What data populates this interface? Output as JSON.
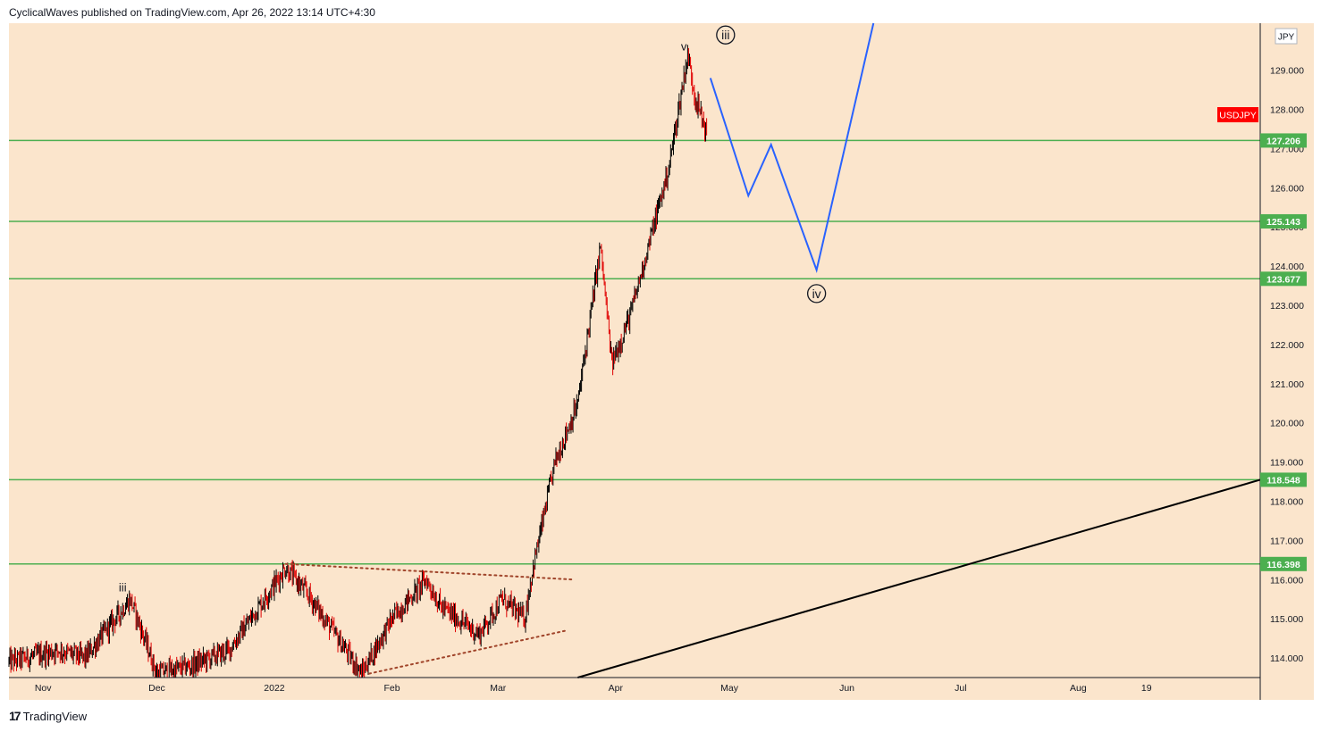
{
  "header": {
    "text": "CyclicalWaves published on TradingView.com, Apr 26, 2022 13:14 UTC+4:30"
  },
  "footer": {
    "logo_mark": "17",
    "logo_text": "TradingView"
  },
  "colors": {
    "background": "#fbe5cc",
    "level_line": "#4caf50",
    "projection": "#2962ff",
    "candle_up": "#000000",
    "candle_down": "#e00000",
    "trendline": "#000000",
    "dotted": "#a0442a",
    "symbol_badge": "#ff0000"
  },
  "chart_data": {
    "type": "candlestick",
    "symbol": "USDJPY",
    "currency": "JPY",
    "y_axis": {
      "ticks": [
        "129.000",
        "128.000",
        "127.000",
        "126.000",
        "125.000",
        "124.000",
        "123.000",
        "122.000",
        "121.000",
        "120.000",
        "119.000",
        "118.000",
        "117.000",
        "116.000",
        "115.000",
        "114.000"
      ],
      "tick_values": [
        129,
        128,
        127,
        126,
        125,
        124,
        123,
        122,
        121,
        120,
        119,
        118,
        117,
        116,
        115,
        114
      ],
      "range": [
        113.5,
        130.2
      ]
    },
    "x_axis": {
      "ticks": [
        "Nov",
        "Dec",
        "2022",
        "Feb",
        "Mar",
        "Apr",
        "May",
        "Jun",
        "Jul",
        "Aug",
        "19"
      ],
      "tick_dates": [
        "2021-11-01",
        "2021-12-01",
        "2022-01-01",
        "2022-02-01",
        "2022-03-01",
        "2022-04-01",
        "2022-05-01",
        "2022-06-01",
        "2022-07-01",
        "2022-08-01",
        "2022-08-19"
      ],
      "range": [
        "2021-10-23",
        "2022-09-18"
      ]
    },
    "price_path": [
      [
        "2021-10-23",
        113.9
      ],
      [
        "2021-11-05",
        114.2
      ],
      [
        "2021-11-12",
        114.0
      ],
      [
        "2021-11-24",
        115.5
      ],
      [
        "2021-12-01",
        113.6
      ],
      [
        "2021-12-10",
        113.8
      ],
      [
        "2021-12-20",
        114.2
      ],
      [
        "2022-01-04",
        116.3
      ],
      [
        "2022-01-10",
        115.6
      ],
      [
        "2022-01-24",
        113.6
      ],
      [
        "2022-02-01",
        115.0
      ],
      [
        "2022-02-10",
        116.0
      ],
      [
        "2022-02-14",
        115.3
      ],
      [
        "2022-02-24",
        114.6
      ],
      [
        "2022-03-02",
        115.5
      ],
      [
        "2022-03-08",
        115.0
      ],
      [
        "2022-03-10",
        116.2
      ],
      [
        "2022-03-16",
        119.0
      ],
      [
        "2022-03-22",
        120.5
      ],
      [
        "2022-03-28",
        124.5
      ],
      [
        "2022-03-31",
        121.5
      ],
      [
        "2022-04-05",
        122.8
      ],
      [
        "2022-04-12",
        125.4
      ],
      [
        "2022-04-15",
        126.5
      ],
      [
        "2022-04-20",
        129.4
      ],
      [
        "2022-04-22",
        128.3
      ],
      [
        "2022-04-25",
        127.4
      ]
    ],
    "horizontal_levels": [
      {
        "value": 127.206,
        "label": "127.206"
      },
      {
        "value": 125.143,
        "label": "125.143"
      },
      {
        "value": 123.677,
        "label": "123.677"
      },
      {
        "value": 118.548,
        "label": "118.548"
      },
      {
        "value": 116.398,
        "label": "116.398"
      }
    ],
    "projection_path": [
      [
        "2022-04-26",
        128.8
      ],
      [
        "2022-05-06",
        125.8
      ],
      [
        "2022-05-12",
        127.1
      ],
      [
        "2022-05-24",
        123.9
      ],
      [
        "2022-06-08",
        130.2
      ]
    ],
    "trendline": [
      [
        "2022-03-22",
        113.5
      ],
      [
        "2022-09-18",
        118.548
      ]
    ],
    "triangle_upper": [
      [
        "2022-01-04",
        116.4
      ],
      [
        "2022-03-21",
        116.0
      ]
    ],
    "triangle_lower": [
      [
        "2022-01-26",
        113.6
      ],
      [
        "2022-03-19",
        114.7
      ]
    ],
    "annotations": [
      {
        "text": "iii",
        "date": "2021-11-22",
        "value": 115.7,
        "circled": false
      },
      {
        "text": "v",
        "date": "2022-04-19",
        "value": 129.5,
        "circled": false
      },
      {
        "text": "iii",
        "date": "2022-04-30",
        "value": 129.9,
        "circled": true
      },
      {
        "text": "iv",
        "date": "2022-05-24",
        "value": 123.3,
        "circled": true
      }
    ]
  }
}
